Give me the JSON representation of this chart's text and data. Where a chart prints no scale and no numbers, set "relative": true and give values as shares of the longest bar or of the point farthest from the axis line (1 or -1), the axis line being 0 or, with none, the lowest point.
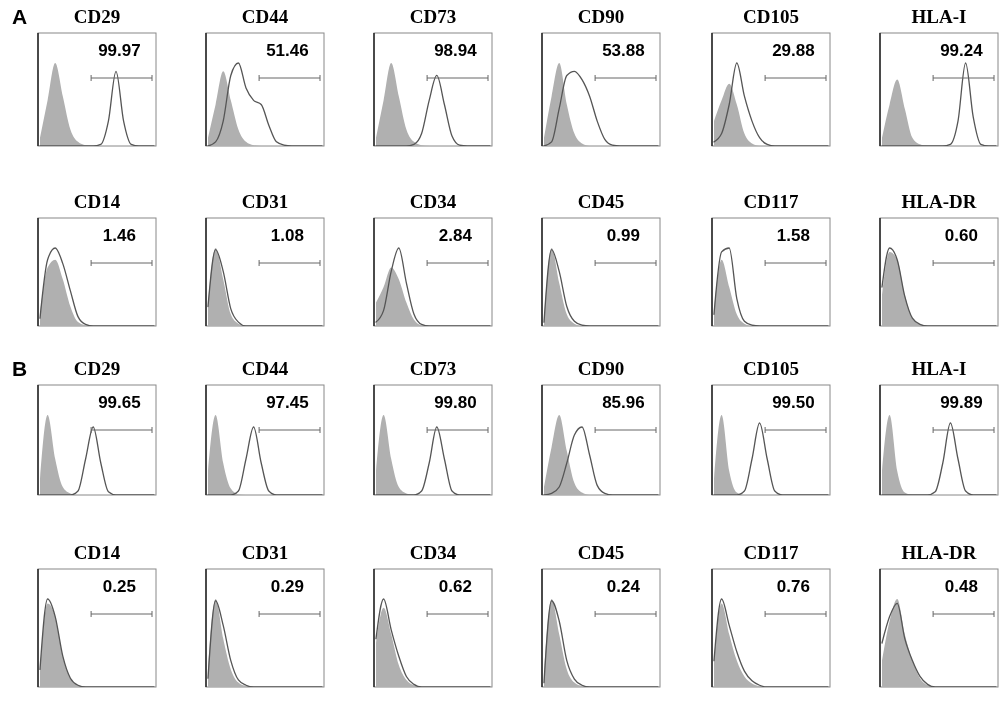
{
  "chart_data": [
    {
      "type": "area",
      "relative": true,
      "title": "CD29",
      "subtitle": "A",
      "annotations": [
        "99.97"
      ],
      "categories": [
        null,
        null,
        null,
        null,
        null,
        null,
        null,
        null,
        null,
        null,
        null,
        null,
        null,
        null,
        null,
        null
      ],
      "series": [
        {
          "type": "area",
          "color": "#b0b0b0",
          "values": [
            0.1,
            0.55,
            1,
            0.6,
            0.2,
            0.05,
            0.01,
            0,
            0,
            0,
            0,
            0,
            0,
            0,
            0,
            0
          ]
        },
        {
          "type": "line",
          "color": "#555555",
          "values": [
            0,
            0,
            0,
            0,
            0,
            0,
            0,
            0,
            0.02,
            0.3,
            0.9,
            0.3,
            0.02,
            0,
            0,
            0
          ]
        }
      ]
    },
    {
      "type": "area",
      "relative": true,
      "title": "CD44",
      "annotations": [
        "51.46"
      ],
      "categories": [
        null,
        null,
        null,
        null,
        null,
        null,
        null,
        null,
        null,
        null,
        null,
        null,
        null,
        null,
        null,
        null
      ],
      "series": [
        {
          "type": "area",
          "color": "#b0b0b0",
          "values": [
            0.1,
            0.5,
            0.9,
            0.55,
            0.2,
            0.05,
            0.01,
            0,
            0,
            0,
            0,
            0,
            0,
            0,
            0,
            0
          ]
        },
        {
          "type": "line",
          "color": "#555555",
          "values": [
            0,
            0.05,
            0.3,
            0.85,
            1,
            0.7,
            0.55,
            0.5,
            0.25,
            0.05,
            0.01,
            0,
            0,
            0,
            0,
            0
          ]
        }
      ]
    },
    {
      "type": "area",
      "relative": true,
      "title": "CD73",
      "annotations": [
        "98.94"
      ],
      "categories": [
        null,
        null,
        null,
        null,
        null,
        null,
        null,
        null,
        null,
        null,
        null,
        null,
        null,
        null,
        null,
        null
      ],
      "series": [
        {
          "type": "area",
          "color": "#b0b0b0",
          "values": [
            0.1,
            0.55,
            1,
            0.6,
            0.2,
            0.05,
            0.01,
            0,
            0,
            0,
            0,
            0,
            0,
            0,
            0,
            0
          ]
        },
        {
          "type": "line",
          "color": "#555555",
          "values": [
            0,
            0,
            0,
            0,
            0,
            0.02,
            0.15,
            0.55,
            0.85,
            0.5,
            0.12,
            0.01,
            0,
            0,
            0,
            0
          ]
        }
      ]
    },
    {
      "type": "area",
      "relative": true,
      "title": "CD90",
      "annotations": [
        "53.88"
      ],
      "categories": [
        null,
        null,
        null,
        null,
        null,
        null,
        null,
        null,
        null,
        null,
        null,
        null,
        null,
        null,
        null,
        null
      ],
      "series": [
        {
          "type": "area",
          "color": "#b0b0b0",
          "values": [
            0.1,
            0.6,
            1,
            0.5,
            0.15,
            0.03,
            0,
            0,
            0,
            0,
            0,
            0,
            0,
            0,
            0,
            0
          ]
        },
        {
          "type": "line",
          "color": "#555555",
          "values": [
            0,
            0.05,
            0.45,
            0.85,
            0.9,
            0.8,
            0.6,
            0.3,
            0.08,
            0.01,
            0,
            0,
            0,
            0,
            0,
            0
          ]
        }
      ]
    },
    {
      "type": "area",
      "relative": true,
      "title": "CD105",
      "annotations": [
        "29.88"
      ],
      "categories": [
        null,
        null,
        null,
        null,
        null,
        null,
        null,
        null,
        null,
        null,
        null,
        null,
        null,
        null,
        null,
        null
      ],
      "series": [
        {
          "type": "area",
          "color": "#b0b0b0",
          "values": [
            0.3,
            0.55,
            0.75,
            0.5,
            0.15,
            0.03,
            0,
            0,
            0,
            0,
            0,
            0,
            0,
            0,
            0,
            0
          ]
        },
        {
          "type": "line",
          "color": "#555555",
          "values": [
            0.05,
            0.15,
            0.5,
            1,
            0.6,
            0.3,
            0.1,
            0.02,
            0,
            0,
            0,
            0,
            0,
            0,
            0,
            0
          ]
        }
      ]
    },
    {
      "type": "area",
      "relative": true,
      "title": "HLA-I",
      "annotations": [
        "99.24"
      ],
      "categories": [
        null,
        null,
        null,
        null,
        null,
        null,
        null,
        null,
        null,
        null,
        null,
        null,
        null,
        null,
        null,
        null
      ],
      "series": [
        {
          "type": "area",
          "color": "#b0b0b0",
          "values": [
            0.1,
            0.5,
            0.8,
            0.45,
            0.1,
            0.02,
            0,
            0,
            0,
            0,
            0,
            0,
            0,
            0,
            0,
            0
          ]
        },
        {
          "type": "line",
          "color": "#555555",
          "values": [
            0,
            0,
            0,
            0,
            0,
            0,
            0,
            0,
            0,
            0.02,
            0.3,
            1,
            0.35,
            0.02,
            0,
            0
          ]
        }
      ]
    },
    {
      "type": "area",
      "relative": true,
      "title": "CD14",
      "annotations": [
        "1.46"
      ],
      "categories": [
        null,
        null,
        null,
        null,
        null,
        null,
        null,
        null,
        null,
        null,
        null,
        null,
        null,
        null,
        null,
        null
      ],
      "series": [
        {
          "type": "area",
          "color": "#b0b0b0",
          "values": [
            0.15,
            0.75,
            0.85,
            0.6,
            0.25,
            0.05,
            0.01,
            0,
            0,
            0,
            0,
            0,
            0,
            0,
            0,
            0
          ]
        },
        {
          "type": "line",
          "color": "#555555",
          "values": [
            0.1,
            0.85,
            1,
            0.8,
            0.45,
            0.12,
            0.02,
            0,
            0,
            0,
            0,
            0,
            0,
            0,
            0,
            0
          ]
        }
      ]
    },
    {
      "type": "area",
      "relative": true,
      "title": "CD31",
      "annotations": [
        "1.08"
      ],
      "categories": [
        null,
        null,
        null,
        null,
        null,
        null,
        null,
        null,
        null,
        null,
        null,
        null,
        null,
        null,
        null,
        null
      ],
      "series": [
        {
          "type": "area",
          "color": "#b0b0b0",
          "values": [
            0.3,
            1,
            0.6,
            0.15,
            0.03,
            0,
            0,
            0,
            0,
            0,
            0,
            0,
            0,
            0,
            0,
            0
          ]
        },
        {
          "type": "line",
          "color": "#555555",
          "values": [
            0.25,
            0.98,
            0.7,
            0.22,
            0.05,
            0,
            0,
            0,
            0,
            0,
            0,
            0,
            0,
            0,
            0,
            0
          ]
        }
      ]
    },
    {
      "type": "area",
      "relative": true,
      "title": "CD34",
      "annotations": [
        "2.84"
      ],
      "categories": [
        null,
        null,
        null,
        null,
        null,
        null,
        null,
        null,
        null,
        null,
        null,
        null,
        null,
        null,
        null,
        null
      ],
      "series": [
        {
          "type": "area",
          "color": "#b0b0b0",
          "values": [
            0.3,
            0.5,
            0.75,
            0.6,
            0.3,
            0.08,
            0.01,
            0,
            0,
            0,
            0,
            0,
            0,
            0,
            0,
            0
          ]
        },
        {
          "type": "line",
          "color": "#555555",
          "values": [
            0.05,
            0.2,
            0.7,
            1,
            0.55,
            0.15,
            0.02,
            0,
            0,
            0,
            0,
            0,
            0,
            0,
            0,
            0
          ]
        }
      ]
    },
    {
      "type": "area",
      "relative": true,
      "title": "CD45",
      "annotations": [
        "0.99"
      ],
      "categories": [
        null,
        null,
        null,
        null,
        null,
        null,
        null,
        null,
        null,
        null,
        null,
        null,
        null,
        null,
        null,
        null
      ],
      "series": [
        {
          "type": "area",
          "color": "#b0b0b0",
          "values": [
            0.1,
            1,
            0.55,
            0.15,
            0.03,
            0,
            0,
            0,
            0,
            0,
            0,
            0,
            0,
            0,
            0,
            0
          ]
        },
        {
          "type": "line",
          "color": "#555555",
          "values": [
            0.05,
            0.98,
            0.7,
            0.25,
            0.06,
            0.01,
            0,
            0,
            0,
            0,
            0,
            0,
            0,
            0,
            0,
            0
          ]
        }
      ]
    },
    {
      "type": "area",
      "relative": true,
      "title": "CD117",
      "annotations": [
        "1.58"
      ],
      "categories": [
        null,
        null,
        null,
        null,
        null,
        null,
        null,
        null,
        null,
        null,
        null,
        null,
        null,
        null,
        null,
        null
      ],
      "series": [
        {
          "type": "area",
          "color": "#b0b0b0",
          "values": [
            0.2,
            0.85,
            0.5,
            0.15,
            0.03,
            0,
            0,
            0,
            0,
            0,
            0,
            0,
            0,
            0,
            0,
            0
          ]
        },
        {
          "type": "line",
          "color": "#555555",
          "values": [
            0.15,
            0.95,
            1,
            0.35,
            0.06,
            0.01,
            0,
            0,
            0,
            0,
            0,
            0,
            0,
            0,
            0,
            0
          ]
        }
      ]
    },
    {
      "type": "area",
      "relative": true,
      "title": "HLA-DR",
      "annotations": [
        "0.60"
      ],
      "categories": [
        null,
        null,
        null,
        null,
        null,
        null,
        null,
        null,
        null,
        null,
        null,
        null,
        null,
        null,
        null,
        null
      ],
      "series": [
        {
          "type": "area",
          "color": "#b0b0b0",
          "values": [
            0.4,
            0.95,
            0.85,
            0.4,
            0.1,
            0.02,
            0,
            0,
            0,
            0,
            0,
            0,
            0,
            0,
            0,
            0
          ]
        },
        {
          "type": "line",
          "color": "#555555",
          "values": [
            0.5,
            1,
            0.85,
            0.38,
            0.1,
            0.02,
            0,
            0,
            0,
            0,
            0,
            0,
            0,
            0,
            0,
            0
          ]
        }
      ]
    },
    {
      "type": "area",
      "relative": true,
      "title": "CD29",
      "subtitle": "B",
      "annotations": [
        "99.65"
      ],
      "categories": [
        null,
        null,
        null,
        null,
        null,
        null,
        null,
        null,
        null,
        null,
        null,
        null,
        null,
        null,
        null,
        null
      ],
      "series": [
        {
          "type": "area",
          "color": "#b0b0b0",
          "values": [
            0.2,
            1,
            0.45,
            0.1,
            0.02,
            0,
            0,
            0,
            0,
            0,
            0,
            0,
            0,
            0,
            0,
            0
          ]
        },
        {
          "type": "line",
          "color": "#555555",
          "values": [
            0,
            0,
            0,
            0,
            0,
            0.05,
            0.45,
            0.85,
            0.4,
            0.04,
            0,
            0,
            0,
            0,
            0,
            0
          ]
        }
      ]
    },
    {
      "type": "area",
      "relative": true,
      "title": "CD44",
      "annotations": [
        "97.45"
      ],
      "categories": [
        null,
        null,
        null,
        null,
        null,
        null,
        null,
        null,
        null,
        null,
        null,
        null,
        null,
        null,
        null,
        null
      ],
      "series": [
        {
          "type": "area",
          "color": "#b0b0b0",
          "values": [
            0.3,
            1,
            0.4,
            0.08,
            0.01,
            0,
            0,
            0,
            0,
            0,
            0,
            0,
            0,
            0,
            0,
            0
          ]
        },
        {
          "type": "line",
          "color": "#555555",
          "values": [
            0,
            0,
            0,
            0,
            0.05,
            0.45,
            0.85,
            0.4,
            0.05,
            0,
            0,
            0,
            0,
            0,
            0,
            0
          ]
        }
      ]
    },
    {
      "type": "area",
      "relative": true,
      "title": "CD73",
      "annotations": [
        "99.80"
      ],
      "categories": [
        null,
        null,
        null,
        null,
        null,
        null,
        null,
        null,
        null,
        null,
        null,
        null,
        null,
        null,
        null,
        null
      ],
      "series": [
        {
          "type": "area",
          "color": "#b0b0b0",
          "values": [
            0.3,
            1,
            0.45,
            0.1,
            0.02,
            0,
            0,
            0,
            0,
            0,
            0,
            0,
            0,
            0,
            0,
            0
          ]
        },
        {
          "type": "line",
          "color": "#555555",
          "values": [
            0,
            0,
            0,
            0,
            0,
            0,
            0.05,
            0.4,
            0.85,
            0.45,
            0.05,
            0,
            0,
            0,
            0,
            0
          ]
        }
      ]
    },
    {
      "type": "area",
      "relative": true,
      "title": "CD90",
      "annotations": [
        "85.96"
      ],
      "categories": [
        null,
        null,
        null,
        null,
        null,
        null,
        null,
        null,
        null,
        null,
        null,
        null,
        null,
        null,
        null,
        null
      ],
      "series": [
        {
          "type": "area",
          "color": "#b0b0b0",
          "values": [
            0.1,
            0.6,
            1,
            0.55,
            0.15,
            0.03,
            0,
            0,
            0,
            0,
            0,
            0,
            0,
            0,
            0,
            0
          ]
        },
        {
          "type": "line",
          "color": "#555555",
          "values": [
            0,
            0.02,
            0.1,
            0.4,
            0.75,
            0.85,
            0.5,
            0.12,
            0.02,
            0,
            0,
            0,
            0,
            0,
            0,
            0
          ]
        }
      ]
    },
    {
      "type": "area",
      "relative": true,
      "title": "CD105",
      "annotations": [
        "99.50"
      ],
      "categories": [
        null,
        null,
        null,
        null,
        null,
        null,
        null,
        null,
        null,
        null,
        null,
        null,
        null,
        null,
        null,
        null
      ],
      "series": [
        {
          "type": "area",
          "color": "#b0b0b0",
          "values": [
            0.2,
            1,
            0.3,
            0.03,
            0,
            0,
            0,
            0,
            0,
            0,
            0,
            0,
            0,
            0,
            0,
            0
          ]
        },
        {
          "type": "line",
          "color": "#555555",
          "values": [
            0,
            0,
            0,
            0,
            0.05,
            0.45,
            0.9,
            0.45,
            0.05,
            0,
            0,
            0,
            0,
            0,
            0,
            0
          ]
        }
      ]
    },
    {
      "type": "area",
      "relative": true,
      "title": "HLA-I",
      "annotations": [
        "99.89"
      ],
      "categories": [
        null,
        null,
        null,
        null,
        null,
        null,
        null,
        null,
        null,
        null,
        null,
        null,
        null,
        null,
        null,
        null
      ],
      "series": [
        {
          "type": "area",
          "color": "#b0b0b0",
          "values": [
            0.3,
            1,
            0.3,
            0.03,
            0,
            0,
            0,
            0,
            0,
            0,
            0,
            0,
            0,
            0,
            0,
            0
          ]
        },
        {
          "type": "line",
          "color": "#555555",
          "values": [
            0,
            0,
            0,
            0,
            0,
            0,
            0,
            0.04,
            0.4,
            0.9,
            0.45,
            0.05,
            0,
            0,
            0,
            0
          ]
        }
      ]
    },
    {
      "type": "area",
      "relative": true,
      "title": "CD14",
      "annotations": [
        "0.25"
      ],
      "categories": [
        null,
        null,
        null,
        null,
        null,
        null,
        null,
        null,
        null,
        null,
        null,
        null,
        null,
        null,
        null,
        null
      ],
      "series": [
        {
          "type": "area",
          "color": "#b0b0b0",
          "values": [
            0.2,
            0.95,
            0.8,
            0.35,
            0.1,
            0.02,
            0,
            0,
            0,
            0,
            0,
            0,
            0,
            0,
            0,
            0
          ]
        },
        {
          "type": "line",
          "color": "#555555",
          "values": [
            0.2,
            1,
            0.8,
            0.35,
            0.1,
            0.02,
            0,
            0,
            0,
            0,
            0,
            0,
            0,
            0,
            0,
            0
          ]
        }
      ]
    },
    {
      "type": "area",
      "relative": true,
      "title": "CD31",
      "annotations": [
        "0.29"
      ],
      "categories": [
        null,
        null,
        null,
        null,
        null,
        null,
        null,
        null,
        null,
        null,
        null,
        null,
        null,
        null,
        null,
        null
      ],
      "series": [
        {
          "type": "area",
          "color": "#b0b0b0",
          "values": [
            0.2,
            1,
            0.55,
            0.2,
            0.05,
            0.01,
            0,
            0,
            0,
            0,
            0,
            0,
            0,
            0,
            0,
            0
          ]
        },
        {
          "type": "line",
          "color": "#555555",
          "values": [
            0.1,
            0.98,
            0.7,
            0.3,
            0.08,
            0.02,
            0,
            0,
            0,
            0,
            0,
            0,
            0,
            0,
            0,
            0
          ]
        }
      ]
    },
    {
      "type": "area",
      "relative": true,
      "title": "CD34",
      "annotations": [
        "0.62"
      ],
      "categories": [
        null,
        null,
        null,
        null,
        null,
        null,
        null,
        null,
        null,
        null,
        null,
        null,
        null,
        null,
        null,
        null
      ],
      "series": [
        {
          "type": "area",
          "color": "#b0b0b0",
          "values": [
            0.5,
            0.9,
            0.6,
            0.25,
            0.08,
            0.02,
            0,
            0,
            0,
            0,
            0,
            0,
            0,
            0,
            0,
            0
          ]
        },
        {
          "type": "line",
          "color": "#555555",
          "values": [
            0.55,
            1,
            0.65,
            0.35,
            0.12,
            0.03,
            0,
            0,
            0,
            0,
            0,
            0,
            0,
            0,
            0,
            0
          ]
        }
      ]
    },
    {
      "type": "area",
      "relative": true,
      "title": "CD45",
      "annotations": [
        "0.24"
      ],
      "categories": [
        null,
        null,
        null,
        null,
        null,
        null,
        null,
        null,
        null,
        null,
        null,
        null,
        null,
        null,
        null,
        null
      ],
      "series": [
        {
          "type": "area",
          "color": "#b0b0b0",
          "values": [
            0.15,
            1,
            0.6,
            0.2,
            0.05,
            0.01,
            0,
            0,
            0,
            0,
            0,
            0,
            0,
            0,
            0,
            0
          ]
        },
        {
          "type": "line",
          "color": "#555555",
          "values": [
            0.05,
            0.98,
            0.75,
            0.3,
            0.09,
            0.02,
            0,
            0,
            0,
            0,
            0,
            0,
            0,
            0,
            0,
            0
          ]
        }
      ]
    },
    {
      "type": "area",
      "relative": true,
      "title": "CD117",
      "annotations": [
        "0.76"
      ],
      "categories": [
        null,
        null,
        null,
        null,
        null,
        null,
        null,
        null,
        null,
        null,
        null,
        null,
        null,
        null,
        null,
        null
      ],
      "series": [
        {
          "type": "area",
          "color": "#b0b0b0",
          "values": [
            0.3,
            0.95,
            0.6,
            0.3,
            0.12,
            0.04,
            0.01,
            0,
            0,
            0,
            0,
            0,
            0,
            0,
            0,
            0
          ]
        },
        {
          "type": "line",
          "color": "#555555",
          "values": [
            0.3,
            1,
            0.7,
            0.4,
            0.18,
            0.07,
            0.02,
            0,
            0,
            0,
            0,
            0,
            0,
            0,
            0,
            0
          ]
        }
      ]
    },
    {
      "type": "area",
      "relative": true,
      "title": "HLA-DR",
      "annotations": [
        "0.48"
      ],
      "categories": [
        null,
        null,
        null,
        null,
        null,
        null,
        null,
        null,
        null,
        null,
        null,
        null,
        null,
        null,
        null,
        null
      ],
      "series": [
        {
          "type": "area",
          "color": "#b0b0b0",
          "values": [
            0.3,
            0.75,
            1,
            0.6,
            0.3,
            0.1,
            0.02,
            0,
            0,
            0,
            0,
            0,
            0,
            0,
            0,
            0
          ]
        },
        {
          "type": "line",
          "color": "#555555",
          "values": [
            0.5,
            0.8,
            0.95,
            0.55,
            0.3,
            0.12,
            0.03,
            0,
            0,
            0,
            0,
            0,
            0,
            0,
            0,
            0
          ]
        }
      ]
    }
  ]
}
